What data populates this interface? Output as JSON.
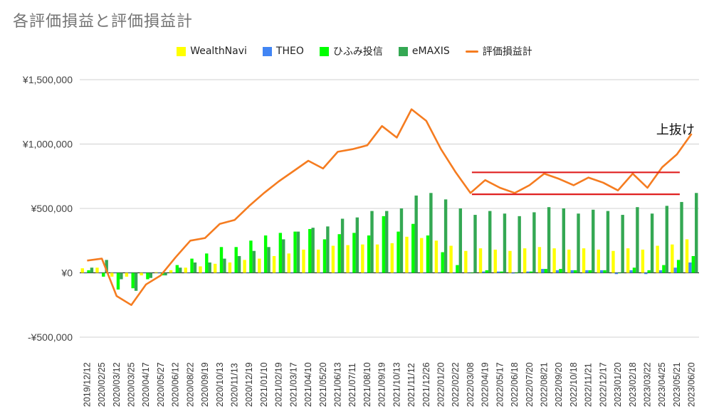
{
  "chart_data": {
    "type": "bar",
    "title": "各評価損益と評価損益計",
    "xlabel": "",
    "ylabel": "",
    "ylim": [
      -500000,
      1500000
    ],
    "yticks": [
      -500000,
      0,
      500000,
      1000000,
      1500000
    ],
    "ytick_labels": [
      "-¥500,000",
      "¥0",
      "¥500,000",
      "¥1,000,000",
      "¥1,500,000"
    ],
    "grid": true,
    "legend_position": "top",
    "categories": [
      "2019/12/12",
      "2020/02/25",
      "2020/03/12",
      "2020/03/25",
      "2020/04/17",
      "2020/05/27",
      "2020/06/12",
      "2020/08/22",
      "2020/09/19",
      "2020/10/13",
      "2020/11/13",
      "2020/12/19",
      "2021/01/10",
      "2021/02/19",
      "2021/03/17",
      "2021/04/10",
      "2021/05/20",
      "2021/06/13",
      "2021/07/11",
      "2021/08/10",
      "2021/09/19",
      "2021/10/13",
      "2021/11/12",
      "2021/12/26",
      "2022/01/20",
      "2022/02/22",
      "2022/03/08",
      "2022/04/19",
      "2022/05/17",
      "2022/06/18",
      "2022/07/20",
      "2022/08/21",
      "2022/09/20",
      "2022/10/18",
      "2022/11/21",
      "2022/12/17",
      "2023/01/20",
      "2023/02/18",
      "2023/03/22",
      "2023/04/25",
      "2023/05/21",
      "2023/06/20"
    ],
    "series": [
      {
        "name": "WealthNavi",
        "color": "#ffff00",
        "kind": "bar",
        "values": [
          35000,
          40000,
          -30000,
          -30000,
          -20000,
          5000,
          20000,
          40000,
          50000,
          70000,
          80000,
          100000,
          110000,
          130000,
          150000,
          180000,
          180000,
          210000,
          215000,
          220000,
          220000,
          230000,
          280000,
          270000,
          250000,
          210000,
          170000,
          190000,
          180000,
          170000,
          190000,
          200000,
          190000,
          180000,
          190000,
          180000,
          170000,
          190000,
          180000,
          210000,
          220000,
          260000
        ]
      },
      {
        "name": "THEO",
        "color": "#4285f4",
        "kind": "bar",
        "values": [
          0,
          0,
          0,
          0,
          0,
          0,
          0,
          0,
          0,
          0,
          0,
          0,
          0,
          0,
          0,
          0,
          0,
          0,
          0,
          0,
          0,
          0,
          0,
          0,
          0,
          0,
          0,
          10000,
          10000,
          -5000,
          10000,
          30000,
          20000,
          20000,
          20000,
          20000,
          -10000,
          20000,
          -10000,
          20000,
          40000,
          80000
        ]
      },
      {
        "name": "ひふみ投信",
        "color": "#00ff00",
        "kind": "bar",
        "values": [
          20000,
          -30000,
          -130000,
          -120000,
          -50000,
          -20000,
          60000,
          110000,
          150000,
          200000,
          200000,
          250000,
          290000,
          310000,
          320000,
          340000,
          260000,
          300000,
          310000,
          290000,
          440000,
          320000,
          380000,
          290000,
          160000,
          60000,
          0,
          20000,
          10000,
          0,
          10000,
          30000,
          30000,
          20000,
          20000,
          20000,
          0,
          40000,
          20000,
          60000,
          100000,
          130000
        ]
      },
      {
        "name": "eMAXIS",
        "color": "#34a853",
        "kind": "bar",
        "values": [
          40000,
          100000,
          -50000,
          -140000,
          -40000,
          -20000,
          40000,
          80000,
          80000,
          110000,
          130000,
          170000,
          200000,
          260000,
          320000,
          350000,
          360000,
          420000,
          430000,
          480000,
          480000,
          500000,
          600000,
          620000,
          570000,
          500000,
          450000,
          480000,
          460000,
          440000,
          470000,
          510000,
          500000,
          460000,
          490000,
          480000,
          450000,
          510000,
          460000,
          520000,
          550000,
          620000
        ]
      },
      {
        "name": "評価損益計",
        "color": "#f57c20",
        "kind": "line",
        "values": [
          95000,
          110000,
          -180000,
          -250000,
          -90000,
          -20000,
          120000,
          250000,
          270000,
          380000,
          410000,
          520000,
          620000,
          710000,
          790000,
          870000,
          810000,
          940000,
          960000,
          990000,
          1140000,
          1050000,
          1270000,
          1180000,
          960000,
          780000,
          620000,
          720000,
          660000,
          620000,
          680000,
          770000,
          730000,
          680000,
          740000,
          700000,
          640000,
          770000,
          660000,
          820000,
          920000,
          1080000
        ]
      }
    ],
    "annotations": [
      {
        "text": "上抜け",
        "near_category": "2023/05/21",
        "near_value": 1100000
      },
      {
        "type": "hline",
        "value": 780000,
        "from_category": "2022/03/08",
        "to_category": "2023/05/21",
        "color": "#e02020"
      },
      {
        "type": "hline",
        "value": 610000,
        "from_category": "2022/03/08",
        "to_category": "2023/05/21",
        "color": "#e02020"
      }
    ]
  }
}
